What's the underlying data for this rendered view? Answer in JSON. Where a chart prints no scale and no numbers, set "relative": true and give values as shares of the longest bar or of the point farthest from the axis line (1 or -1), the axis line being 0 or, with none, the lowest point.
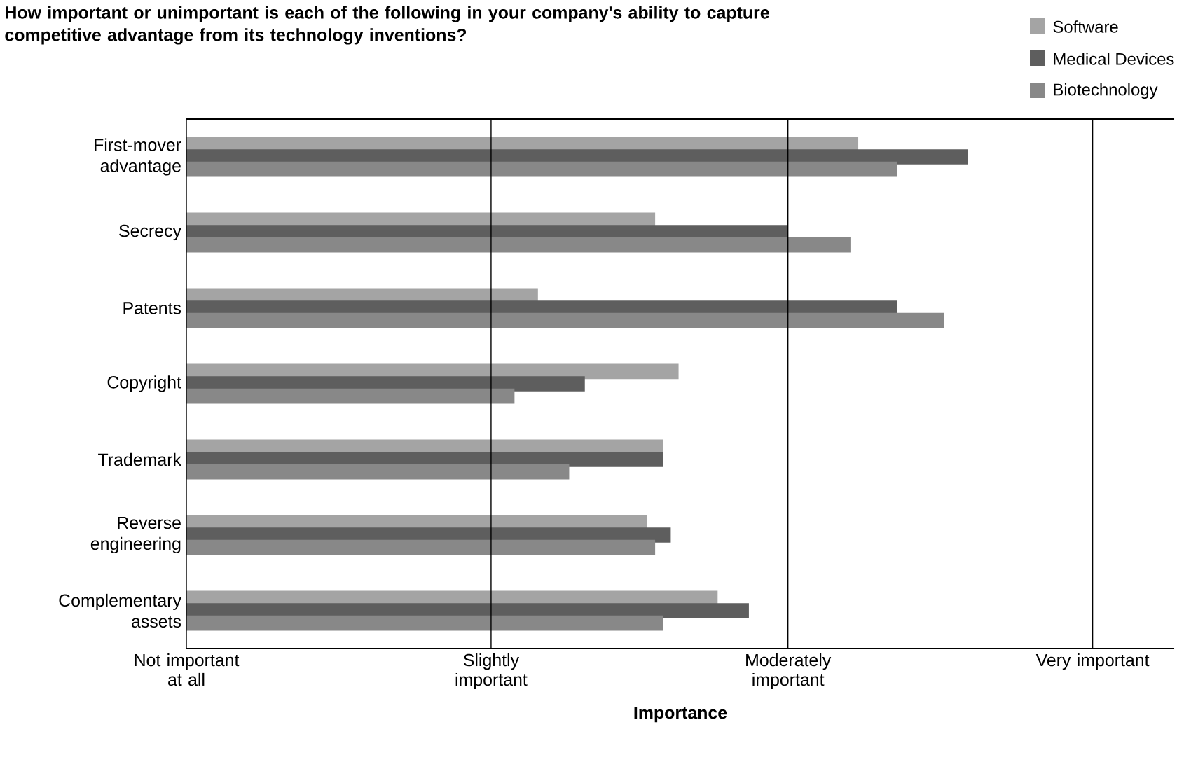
{
  "chart_data": {
    "type": "bar",
    "orientation": "horizontal",
    "title": "How important or unimportant is each of the following in your company's ability to capture competitive advantage from its technology inventions?",
    "xlabel": "Importance",
    "categories": [
      "First-mover advantage",
      "Secrecy",
      "Patents",
      "Copyright",
      "Trademark",
      "Reverse engineering",
      "Complementary assets"
    ],
    "series": [
      {
        "name": "Software",
        "color": "#a4a4a4",
        "values": [
          0.86,
          0.6,
          0.45,
          0.63,
          0.61,
          0.59,
          0.68
        ]
      },
      {
        "name": "Medical Devices",
        "color": "#5e5e5e",
        "values": [
          1,
          0.77,
          0.91,
          0.51,
          0.61,
          0.62,
          0.72
        ]
      },
      {
        "name": "Biotechnology",
        "color": "#888888",
        "values": [
          0.91,
          0.85,
          0.97,
          0.42,
          0.49,
          0.6,
          0.61
        ]
      }
    ],
    "relative": true,
    "ref_lines": [
      {
        "axis": "x",
        "value": 0,
        "label": "Not important at all"
      },
      {
        "axis": "x",
        "value": 0.39,
        "label": "Slightly important"
      },
      {
        "axis": "x",
        "value": 0.77,
        "label": "Moderately important"
      },
      {
        "axis": "x",
        "value": 1.16,
        "label": "Very important"
      }
    ],
    "legend": "top right"
  }
}
